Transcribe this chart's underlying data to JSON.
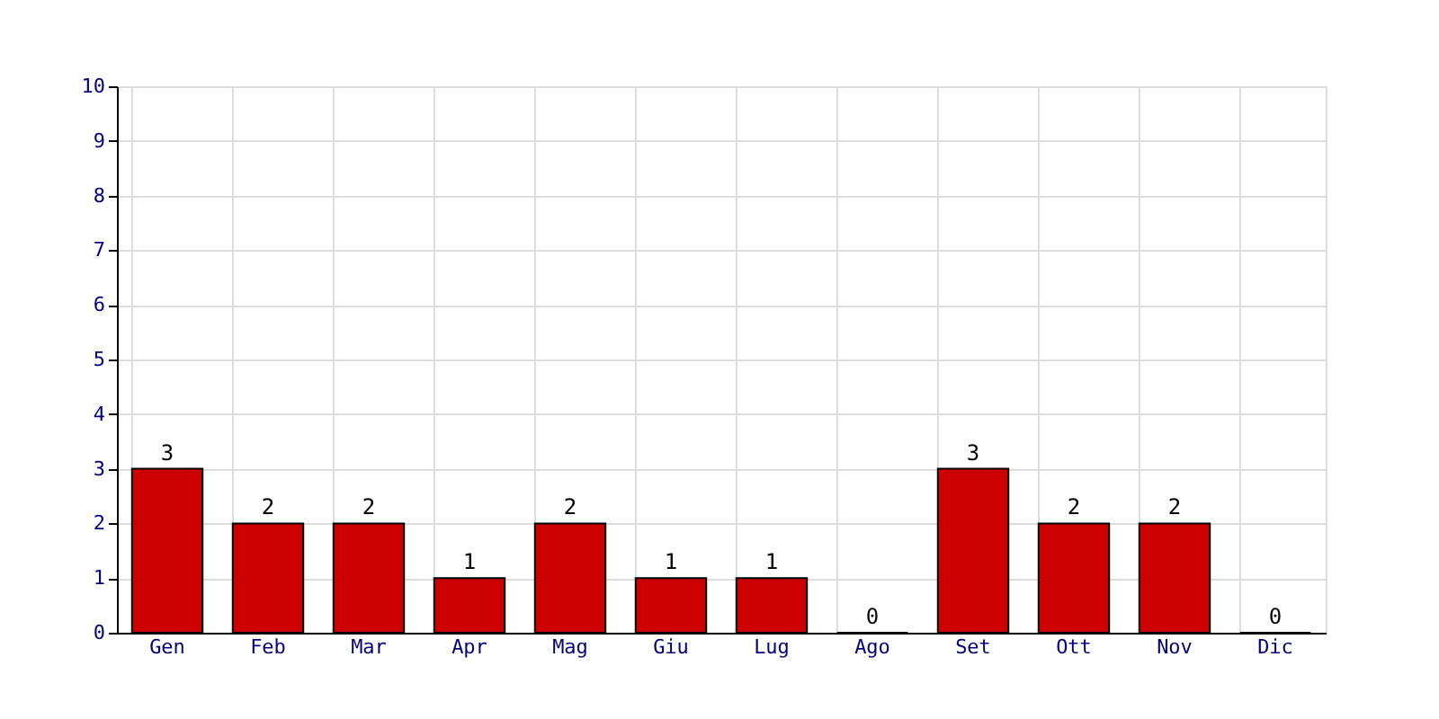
{
  "chart_data": {
    "type": "bar",
    "categories": [
      "Gen",
      "Feb",
      "Mar",
      "Apr",
      "Mag",
      "Giu",
      "Lug",
      "Ago",
      "Set",
      "Ott",
      "Nov",
      "Dic"
    ],
    "values": [
      3,
      2,
      2,
      1,
      2,
      1,
      1,
      0,
      3,
      2,
      2,
      0
    ],
    "color": "#cc0000",
    "ylim": [
      0,
      10
    ],
    "yticks": [
      0,
      1,
      2,
      3,
      4,
      5,
      6,
      7,
      8,
      9,
      10
    ],
    "grid": true,
    "data_labels": true
  }
}
